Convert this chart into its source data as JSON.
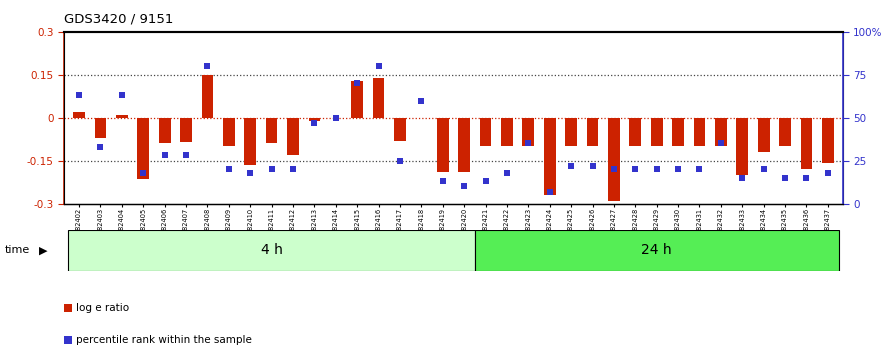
{
  "title": "GDS3420 / 9151",
  "samples": [
    "GSM182402",
    "GSM182403",
    "GSM182404",
    "GSM182405",
    "GSM182406",
    "GSM182407",
    "GSM182408",
    "GSM182409",
    "GSM182410",
    "GSM182411",
    "GSM182412",
    "GSM182413",
    "GSM182414",
    "GSM182415",
    "GSM182416",
    "GSM182417",
    "GSM182418",
    "GSM182419",
    "GSM182420",
    "GSM182421",
    "GSM182422",
    "GSM182423",
    "GSM182424",
    "GSM182425",
    "GSM182426",
    "GSM182427",
    "GSM182428",
    "GSM182429",
    "GSM182430",
    "GSM182431",
    "GSM182432",
    "GSM182433",
    "GSM182434",
    "GSM182435",
    "GSM182436",
    "GSM182437"
  ],
  "log_ratio": [
    0.02,
    -0.07,
    0.01,
    -0.215,
    -0.09,
    -0.085,
    0.148,
    -0.1,
    -0.165,
    -0.088,
    -0.13,
    -0.01,
    0.0,
    0.13,
    0.138,
    -0.08,
    0.0,
    -0.19,
    -0.19,
    -0.1,
    -0.1,
    -0.1,
    -0.27,
    -0.1,
    -0.1,
    -0.29,
    -0.1,
    -0.1,
    -0.1,
    -0.1,
    -0.1,
    -0.2,
    -0.12,
    -0.1,
    -0.18,
    -0.16
  ],
  "percentile": [
    63,
    33,
    63,
    18,
    28,
    28,
    80,
    20,
    18,
    20,
    20,
    47,
    50,
    70,
    80,
    25,
    60,
    13,
    10,
    13,
    18,
    35,
    7,
    22,
    22,
    20,
    20,
    20,
    20,
    20,
    35,
    15,
    20,
    15,
    15,
    18
  ],
  "group1_label": "4 h",
  "group2_label": "24 h",
  "group1_count": 19,
  "group2_count": 17,
  "ylim_left": [
    -0.3,
    0.3
  ],
  "ylim_right": [
    0,
    100
  ],
  "yticks_left": [
    -0.3,
    -0.15,
    0.0,
    0.15,
    0.3
  ],
  "yticks_right": [
    0,
    25,
    50,
    75,
    100
  ],
  "bar_color": "#cc2200",
  "square_color": "#3333cc",
  "group1_bg": "#ccffcc",
  "group2_bg": "#55ee55",
  "legend_ratio_label": "log e ratio",
  "legend_pct_label": "percentile rank within the sample"
}
